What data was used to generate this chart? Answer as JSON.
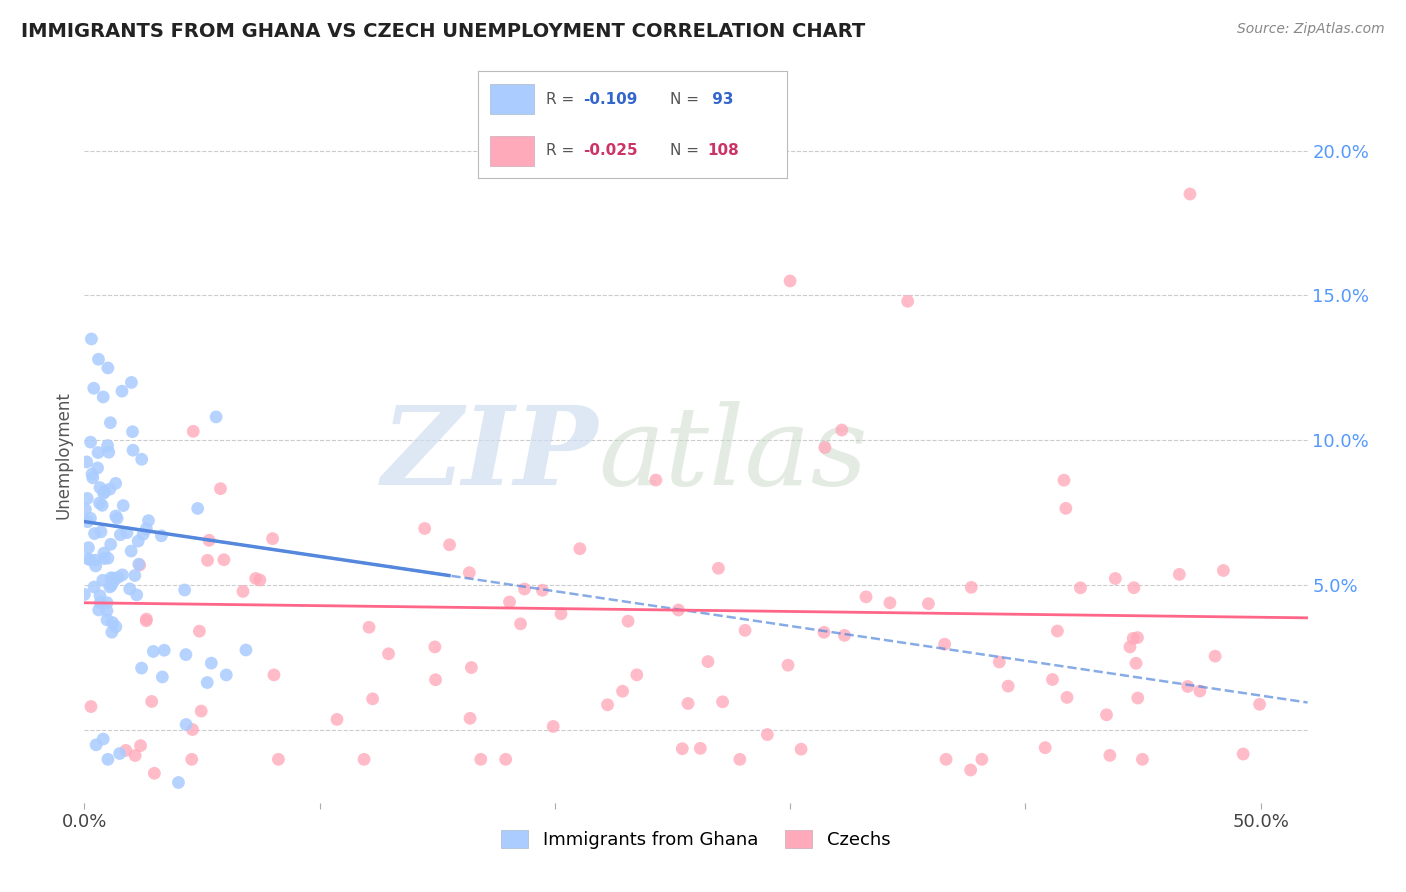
{
  "title": "IMMIGRANTS FROM GHANA VS CZECH UNEMPLOYMENT CORRELATION CHART",
  "source": "Source: ZipAtlas.com",
  "ylabel": "Unemployment",
  "blue_color": "#5588dd",
  "pink_color": "#ff6688",
  "blue_scatter_color": "#aaccff",
  "pink_scatter_color": "#ffaabb",
  "watermark_text": "ZIP",
  "watermark_text2": "atlas",
  "blue_R": -0.109,
  "blue_N": 93,
  "pink_R": -0.025,
  "pink_N": 108,
  "xlim": [
    0.0,
    0.52
  ],
  "ylim": [
    -0.025,
    0.215
  ],
  "y_ticks": [
    0.0,
    0.05,
    0.1,
    0.15,
    0.2
  ],
  "y_tick_labels": [
    "",
    "5.0%",
    "10.0%",
    "15.0%",
    "20.0%"
  ],
  "x_ticks": [
    0.0,
    0.1,
    0.2,
    0.3,
    0.4,
    0.5
  ],
  "x_tick_labels": [
    "0.0%",
    "",
    "",
    "",
    "",
    "50.0%"
  ]
}
